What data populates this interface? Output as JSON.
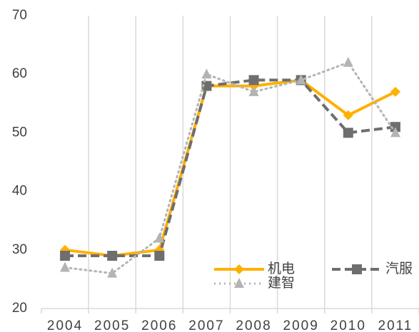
{
  "chart_data": {
    "type": "line",
    "categories": [
      "2004",
      "2005",
      "2006",
      "2007",
      "2008",
      "2009",
      "2010",
      "2011"
    ],
    "series": [
      {
        "name": "机电",
        "color": "#ffb000",
        "dash": "solid",
        "marker": "diamond",
        "values": [
          30,
          29,
          30,
          58,
          58,
          59,
          53,
          57
        ]
      },
      {
        "name": "汽服",
        "color": "#6e6e6e",
        "dash": "dashed",
        "marker": "square",
        "values": [
          29,
          29,
          29,
          58,
          59,
          59,
          50,
          51
        ]
      },
      {
        "name": "建智",
        "color": "#b4b4b4",
        "dash": "dotted",
        "marker": "triangle",
        "values": [
          27,
          26,
          32,
          60,
          57,
          59,
          62,
          50
        ]
      }
    ],
    "ylim": [
      20,
      70
    ],
    "yticks": [
      20,
      30,
      40,
      50,
      60,
      70
    ],
    "grid": "x",
    "legend": "lower right"
  }
}
